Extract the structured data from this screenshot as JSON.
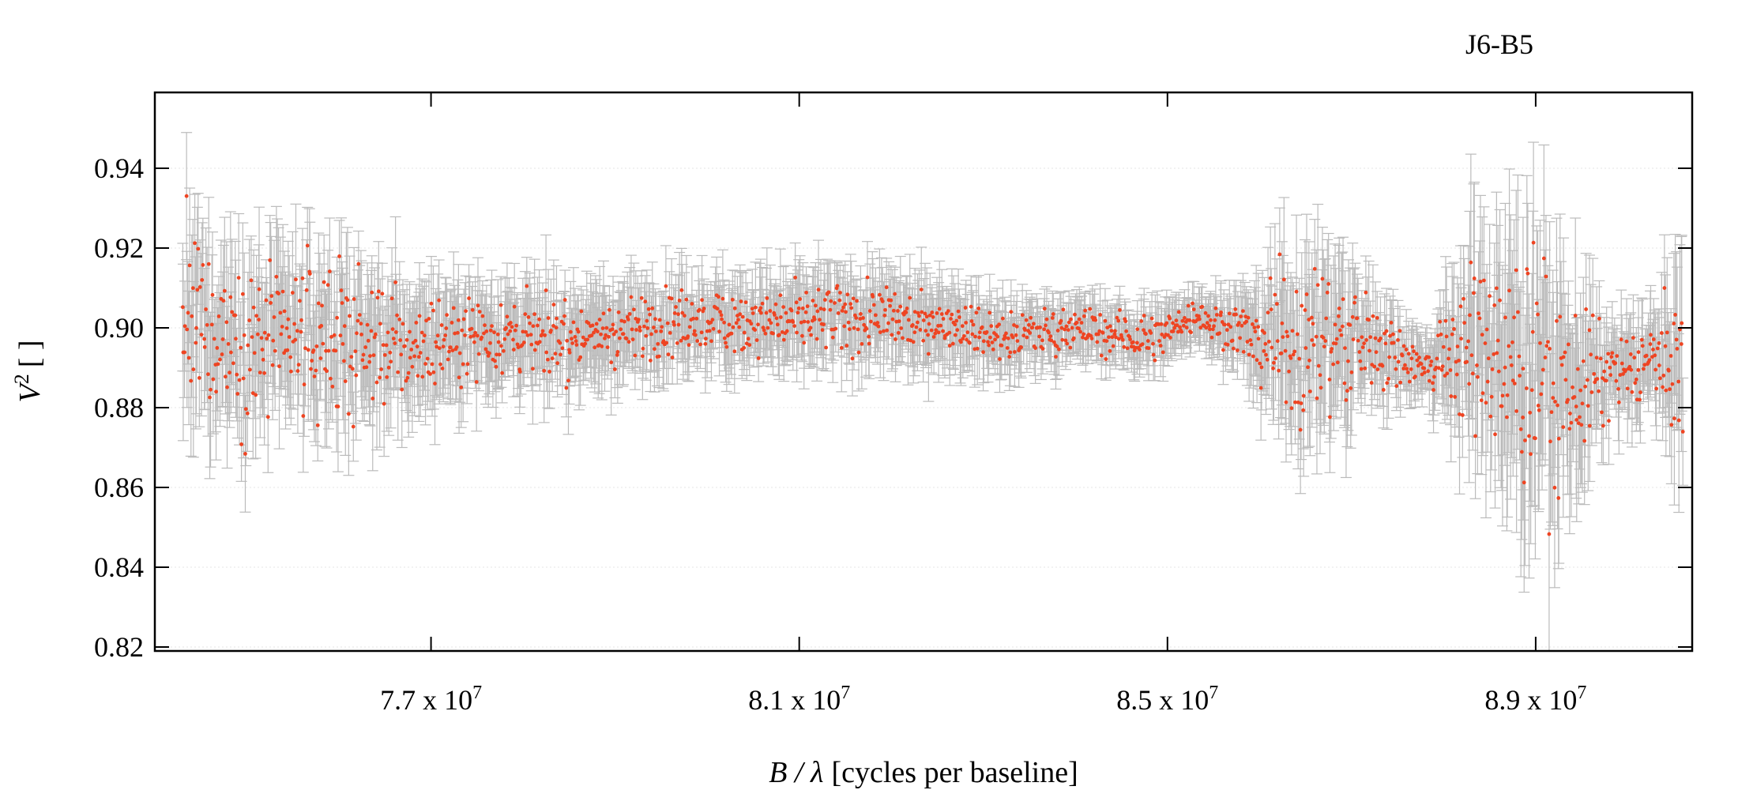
{
  "chart_data": {
    "type": "scatter",
    "title": "J6-B5",
    "xlabel": {
      "var": "B / λ",
      "unit": "[cycles per baseline]"
    },
    "ylabel": {
      "var": "V",
      "sup": "2",
      "unit": "[ ]"
    },
    "xlim": [
      74000000,
      90700000
    ],
    "ylim": [
      0.819,
      0.959
    ],
    "x_ticks": [
      {
        "value": 77000000,
        "mantissa": "7.7 x 10",
        "exp": "7"
      },
      {
        "value": 81000000,
        "mantissa": "8.1 x 10",
        "exp": "7"
      },
      {
        "value": 85000000,
        "mantissa": "8.5 x 10",
        "exp": "7"
      },
      {
        "value": 89000000,
        "mantissa": "8.9 x 10",
        "exp": "7"
      }
    ],
    "y_ticks": [
      {
        "value": 0.82,
        "label": "0.82"
      },
      {
        "value": 0.84,
        "label": "0.84"
      },
      {
        "value": 0.86,
        "label": "0.86"
      },
      {
        "value": 0.88,
        "label": "0.88"
      },
      {
        "value": 0.9,
        "label": "0.90"
      },
      {
        "value": 0.92,
        "label": "0.92"
      },
      {
        "value": 0.94,
        "label": "0.94"
      }
    ],
    "grid": true,
    "marker_color": "#ee4422",
    "errorbar_color": "#bbbbbb",
    "series_envelope": {
      "x": [
        74300000,
        75200000,
        76000000,
        76700000,
        77500000,
        78500000,
        79500000,
        80500000,
        81500000,
        82500000,
        83200000,
        84000000,
        84800000,
        85300000,
        85800000,
        86300000,
        86800000,
        87300000,
        87800000,
        88300000,
        88800000,
        89300000,
        89800000,
        90300000,
        90600000
      ],
      "mean": [
        0.902,
        0.896,
        0.897,
        0.895,
        0.899,
        0.897,
        0.901,
        0.902,
        0.902,
        0.902,
        0.898,
        0.9,
        0.897,
        0.903,
        0.899,
        0.897,
        0.897,
        0.895,
        0.89,
        0.895,
        0.889,
        0.885,
        0.887,
        0.893,
        0.889
      ],
      "spread": [
        0.024,
        0.02,
        0.019,
        0.013,
        0.01,
        0.009,
        0.008,
        0.008,
        0.008,
        0.007,
        0.006,
        0.005,
        0.006,
        0.004,
        0.006,
        0.02,
        0.02,
        0.01,
        0.004,
        0.02,
        0.03,
        0.024,
        0.01,
        0.01,
        0.022
      ],
      "err": [
        0.016,
        0.015,
        0.014,
        0.012,
        0.01,
        0.01,
        0.009,
        0.009,
        0.009,
        0.009,
        0.007,
        0.006,
        0.006,
        0.006,
        0.007,
        0.016,
        0.016,
        0.01,
        0.006,
        0.02,
        0.028,
        0.022,
        0.01,
        0.01,
        0.02
      ]
    },
    "n_points": 1600
  }
}
